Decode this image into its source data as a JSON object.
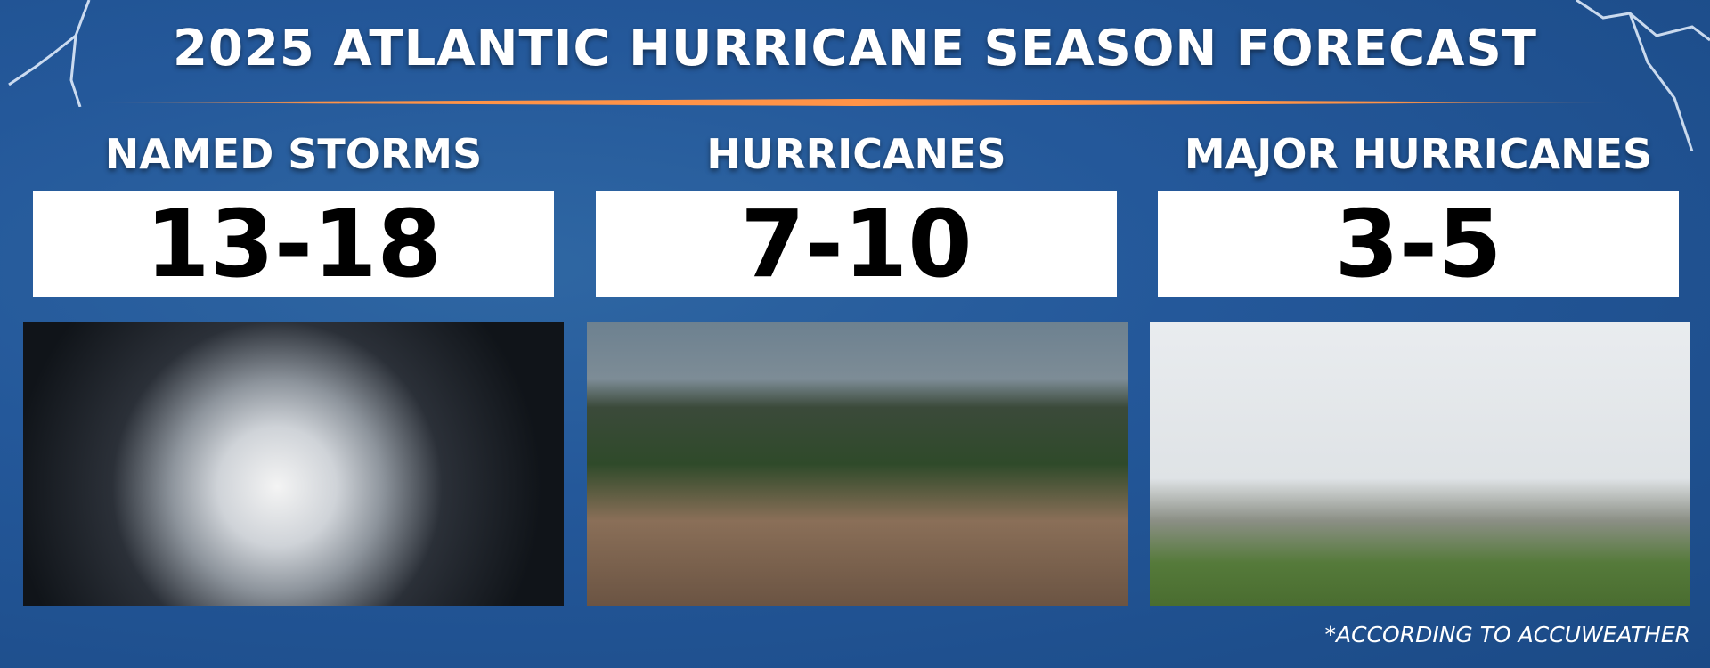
{
  "title": "2025 ATLANTIC HURRICANE SEASON FORECAST",
  "stats": [
    {
      "label": "NAMED STORMS",
      "value": "13-18"
    },
    {
      "label": "HURRICANES",
      "value": "7-10"
    },
    {
      "label": "MAJOR HURRICANES",
      "value": "3-5"
    }
  ],
  "images": [
    "satellite-hurricane-image",
    "flooded-city-image",
    "collapsed-power-towers-image"
  ],
  "footnote": "*ACCORDING TO ACCUWEATHER",
  "colors": {
    "background": "#24589a",
    "accent": "#ff9347",
    "box": "#ffffff"
  }
}
